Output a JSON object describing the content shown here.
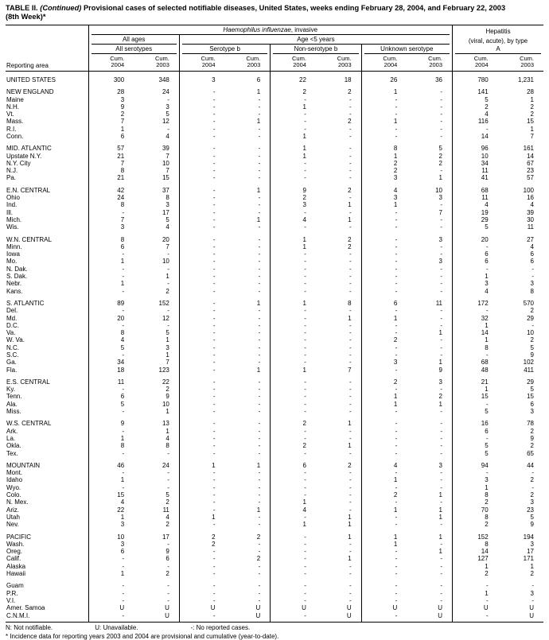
{
  "title": {
    "label": "TABLE II.",
    "continued": " (Continued) ",
    "rest": "Provisional cases of selected notifiable diseases, United States, weeks ending February 28, 2004, and February 22, 2003",
    "line2": "(8th Week)*"
  },
  "header": {
    "reporting_area": "Reporting area",
    "disease1_italic": "Haemophilus influenzae",
    "disease1_rest": ", invasive",
    "all_ages": "All ages",
    "all_serotypes": "All serotypes",
    "age_under5": "Age <5 years",
    "serotype_b": "Serotype b",
    "non_serotype_b": "Non-serotype b",
    "unknown_serotype": "Unknown serotype",
    "hepatitis_line1": "Hepatitis",
    "hepatitis_line2": "(viral, acute), by type",
    "hepatitis_a": "A",
    "cum_label": "Cum.",
    "year_2004": "2004",
    "year_2003": "2003"
  },
  "table": {
    "rows": [
      {
        "n": "UNITED STATES",
        "g": true,
        "v": [
          "300",
          "348",
          "3",
          "6",
          "22",
          "18",
          "26",
          "36",
          "780",
          "1,231"
        ]
      },
      {
        "n": "NEW ENGLAND",
        "g": true,
        "v": [
          "28",
          "24",
          "-",
          "1",
          "2",
          "2",
          "1",
          "-",
          "141",
          "28"
        ]
      },
      {
        "n": "Maine",
        "v": [
          "3",
          "-",
          "-",
          "-",
          "-",
          "-",
          "-",
          "-",
          "5",
          "1"
        ]
      },
      {
        "n": "N.H.",
        "v": [
          "9",
          "3",
          "-",
          "-",
          "1",
          "-",
          "-",
          "-",
          "2",
          "2"
        ]
      },
      {
        "n": "Vt.",
        "v": [
          "2",
          "5",
          "-",
          "-",
          "-",
          "-",
          "-",
          "-",
          "4",
          "2"
        ]
      },
      {
        "n": "Mass.",
        "v": [
          "7",
          "12",
          "-",
          "1",
          "-",
          "2",
          "1",
          "-",
          "116",
          "15"
        ]
      },
      {
        "n": "R.I.",
        "v": [
          "1",
          "-",
          "-",
          "-",
          "-",
          "-",
          "-",
          "-",
          "-",
          "1"
        ]
      },
      {
        "n": "Conn.",
        "v": [
          "6",
          "4",
          "-",
          "-",
          "1",
          "-",
          "-",
          "-",
          "14",
          "7"
        ]
      },
      {
        "n": "MID. ATLANTIC",
        "g": true,
        "v": [
          "57",
          "39",
          "-",
          "-",
          "1",
          "-",
          "8",
          "5",
          "96",
          "161"
        ]
      },
      {
        "n": "Upstate N.Y.",
        "v": [
          "21",
          "7",
          "-",
          "-",
          "1",
          "-",
          "1",
          "2",
          "10",
          "14"
        ]
      },
      {
        "n": "N.Y. City",
        "v": [
          "7",
          "10",
          "-",
          "-",
          "-",
          "-",
          "2",
          "2",
          "34",
          "67"
        ]
      },
      {
        "n": "N.J.",
        "v": [
          "8",
          "7",
          "-",
          "-",
          "-",
          "-",
          "2",
          "-",
          "11",
          "23"
        ]
      },
      {
        "n": "Pa.",
        "v": [
          "21",
          "15",
          "-",
          "-",
          "-",
          "-",
          "3",
          "1",
          "41",
          "57"
        ]
      },
      {
        "n": "E.N. CENTRAL",
        "g": true,
        "v": [
          "42",
          "37",
          "-",
          "1",
          "9",
          "2",
          "4",
          "10",
          "68",
          "100"
        ]
      },
      {
        "n": "Ohio",
        "v": [
          "24",
          "8",
          "-",
          "-",
          "2",
          "-",
          "3",
          "3",
          "11",
          "16"
        ]
      },
      {
        "n": "Ind.",
        "v": [
          "8",
          "3",
          "-",
          "-",
          "3",
          "1",
          "1",
          "-",
          "4",
          "4"
        ]
      },
      {
        "n": "Ill.",
        "v": [
          "-",
          "17",
          "-",
          "-",
          "-",
          "-",
          "-",
          "7",
          "19",
          "39"
        ]
      },
      {
        "n": "Mich.",
        "v": [
          "7",
          "5",
          "-",
          "1",
          "4",
          "1",
          "-",
          "-",
          "29",
          "30"
        ]
      },
      {
        "n": "Wis.",
        "v": [
          "3",
          "4",
          "-",
          "-",
          "-",
          "-",
          "-",
          "-",
          "5",
          "11"
        ]
      },
      {
        "n": "W.N. CENTRAL",
        "g": true,
        "v": [
          "8",
          "20",
          "-",
          "-",
          "1",
          "2",
          "-",
          "3",
          "20",
          "27"
        ]
      },
      {
        "n": "Minn.",
        "v": [
          "6",
          "7",
          "-",
          "-",
          "1",
          "2",
          "-",
          "-",
          "-",
          "4"
        ]
      },
      {
        "n": "Iowa",
        "v": [
          "-",
          "-",
          "-",
          "-",
          "-",
          "-",
          "-",
          "-",
          "6",
          "6"
        ]
      },
      {
        "n": "Mo.",
        "v": [
          "1",
          "10",
          "-",
          "-",
          "-",
          "-",
          "-",
          "3",
          "6",
          "6"
        ]
      },
      {
        "n": "N. Dak.",
        "v": [
          "-",
          "-",
          "-",
          "-",
          "-",
          "-",
          "-",
          "-",
          "-",
          "-"
        ]
      },
      {
        "n": "S. Dak.",
        "v": [
          "-",
          "1",
          "-",
          "-",
          "-",
          "-",
          "-",
          "-",
          "1",
          "-"
        ]
      },
      {
        "n": "Nebr.",
        "v": [
          "1",
          "-",
          "-",
          "-",
          "-",
          "-",
          "-",
          "-",
          "3",
          "3"
        ]
      },
      {
        "n": "Kans.",
        "v": [
          "-",
          "2",
          "-",
          "-",
          "-",
          "-",
          "-",
          "-",
          "4",
          "8"
        ]
      },
      {
        "n": "S. ATLANTIC",
        "g": true,
        "v": [
          "89",
          "152",
          "-",
          "1",
          "1",
          "8",
          "6",
          "11",
          "172",
          "570"
        ]
      },
      {
        "n": "Del.",
        "v": [
          "-",
          "-",
          "-",
          "-",
          "-",
          "-",
          "-",
          "-",
          "-",
          "2"
        ]
      },
      {
        "n": "Md.",
        "v": [
          "20",
          "12",
          "-",
          "-",
          "-",
          "1",
          "1",
          "-",
          "32",
          "29"
        ]
      },
      {
        "n": "D.C.",
        "v": [
          "-",
          "-",
          "-",
          "-",
          "-",
          "-",
          "-",
          "-",
          "1",
          "-"
        ]
      },
      {
        "n": "Va.",
        "v": [
          "8",
          "5",
          "-",
          "-",
          "-",
          "-",
          "-",
          "1",
          "14",
          "10"
        ]
      },
      {
        "n": "W. Va.",
        "v": [
          "4",
          "1",
          "-",
          "-",
          "-",
          "-",
          "2",
          "-",
          "1",
          "2"
        ]
      },
      {
        "n": "N.C.",
        "v": [
          "5",
          "3",
          "-",
          "-",
          "-",
          "-",
          "-",
          "-",
          "8",
          "5"
        ]
      },
      {
        "n": "S.C.",
        "v": [
          "-",
          "1",
          "-",
          "-",
          "-",
          "-",
          "-",
          "-",
          "-",
          "9"
        ]
      },
      {
        "n": "Ga.",
        "v": [
          "34",
          "7",
          "-",
          "-",
          "-",
          "-",
          "3",
          "1",
          "68",
          "102"
        ]
      },
      {
        "n": "Fla.",
        "v": [
          "18",
          "123",
          "-",
          "1",
          "1",
          "7",
          "-",
          "9",
          "48",
          "411"
        ]
      },
      {
        "n": "E.S. CENTRAL",
        "g": true,
        "v": [
          "11",
          "22",
          "-",
          "-",
          "-",
          "-",
          "2",
          "3",
          "21",
          "29"
        ]
      },
      {
        "n": "Ky.",
        "v": [
          "-",
          "2",
          "-",
          "-",
          "-",
          "-",
          "-",
          "-",
          "1",
          "5"
        ]
      },
      {
        "n": "Tenn.",
        "v": [
          "6",
          "9",
          "-",
          "-",
          "-",
          "-",
          "1",
          "2",
          "15",
          "15"
        ]
      },
      {
        "n": "Ala.",
        "v": [
          "5",
          "10",
          "-",
          "-",
          "-",
          "-",
          "1",
          "1",
          "-",
          "6"
        ]
      },
      {
        "n": "Miss.",
        "v": [
          "-",
          "1",
          "-",
          "-",
          "-",
          "-",
          "-",
          "-",
          "5",
          "3"
        ]
      },
      {
        "n": "W.S. CENTRAL",
        "g": true,
        "v": [
          "9",
          "13",
          "-",
          "-",
          "2",
          "1",
          "-",
          "-",
          "16",
          "78"
        ]
      },
      {
        "n": "Ark.",
        "v": [
          "-",
          "1",
          "-",
          "-",
          "-",
          "-",
          "-",
          "-",
          "6",
          "2"
        ]
      },
      {
        "n": "La.",
        "v": [
          "1",
          "4",
          "-",
          "-",
          "-",
          "-",
          "-",
          "-",
          "-",
          "9"
        ]
      },
      {
        "n": "Okla.",
        "v": [
          "8",
          "8",
          "-",
          "-",
          "2",
          "1",
          "-",
          "-",
          "5",
          "2"
        ]
      },
      {
        "n": "Tex.",
        "v": [
          "-",
          "-",
          "-",
          "-",
          "-",
          "-",
          "-",
          "-",
          "5",
          "65"
        ]
      },
      {
        "n": "MOUNTAIN",
        "g": true,
        "v": [
          "46",
          "24",
          "1",
          "1",
          "6",
          "2",
          "4",
          "3",
          "94",
          "44"
        ]
      },
      {
        "n": "Mont.",
        "v": [
          "-",
          "-",
          "-",
          "-",
          "-",
          "-",
          "-",
          "-",
          "-",
          "-"
        ]
      },
      {
        "n": "Idaho",
        "v": [
          "1",
          "-",
          "-",
          "-",
          "-",
          "-",
          "1",
          "-",
          "3",
          "2"
        ]
      },
      {
        "n": "Wyo.",
        "v": [
          "-",
          "-",
          "-",
          "-",
          "-",
          "-",
          "-",
          "-",
          "1",
          "-"
        ]
      },
      {
        "n": "Colo.",
        "v": [
          "15",
          "5",
          "-",
          "-",
          "-",
          "-",
          "2",
          "1",
          "8",
          "2"
        ]
      },
      {
        "n": "N. Mex.",
        "v": [
          "4",
          "2",
          "-",
          "-",
          "1",
          "-",
          "-",
          "-",
          "2",
          "3"
        ]
      },
      {
        "n": "Ariz.",
        "v": [
          "22",
          "11",
          "-",
          "1",
          "4",
          "-",
          "1",
          "1",
          "70",
          "23"
        ]
      },
      {
        "n": "Utah",
        "v": [
          "1",
          "4",
          "1",
          "-",
          "-",
          "1",
          "-",
          "1",
          "8",
          "5"
        ]
      },
      {
        "n": "Nev.",
        "v": [
          "3",
          "2",
          "-",
          "-",
          "1",
          "1",
          "-",
          "-",
          "2",
          "9"
        ]
      },
      {
        "n": "PACIFIC",
        "g": true,
        "v": [
          "10",
          "17",
          "2",
          "2",
          "-",
          "1",
          "1",
          "1",
          "152",
          "194"
        ]
      },
      {
        "n": "Wash.",
        "v": [
          "3",
          "-",
          "2",
          "-",
          "-",
          "-",
          "1",
          "-",
          "8",
          "3"
        ]
      },
      {
        "n": "Oreg.",
        "v": [
          "6",
          "9",
          "-",
          "-",
          "-",
          "-",
          "-",
          "1",
          "14",
          "17"
        ]
      },
      {
        "n": "Calif.",
        "v": [
          "-",
          "6",
          "-",
          "2",
          "-",
          "1",
          "-",
          "-",
          "127",
          "171"
        ]
      },
      {
        "n": "Alaska",
        "v": [
          "-",
          "-",
          "-",
          "-",
          "-",
          "-",
          "-",
          "-",
          "1",
          "1"
        ]
      },
      {
        "n": "Hawaii",
        "v": [
          "1",
          "2",
          "-",
          "-",
          "-",
          "-",
          "-",
          "-",
          "2",
          "2"
        ]
      },
      {
        "n": "Guam",
        "g": true,
        "v": [
          "-",
          "-",
          "-",
          "-",
          "-",
          "-",
          "-",
          "-",
          "-",
          "-"
        ]
      },
      {
        "n": "P.R.",
        "v": [
          "-",
          "-",
          "-",
          "-",
          "-",
          "-",
          "-",
          "-",
          "1",
          "3"
        ]
      },
      {
        "n": "V.I.",
        "v": [
          "-",
          "-",
          "-",
          "-",
          "-",
          "-",
          "-",
          "-",
          "-",
          "-"
        ]
      },
      {
        "n": "Amer. Samoa",
        "v": [
          "U",
          "U",
          "U",
          "U",
          "U",
          "U",
          "U",
          "U",
          "U",
          "U"
        ]
      },
      {
        "n": "C.N.M.I.",
        "v": [
          "-",
          "U",
          "-",
          "U",
          "-",
          "U",
          "-",
          "U",
          "-",
          "U"
        ]
      }
    ]
  },
  "footer": {
    "legend_n": "N: Not notifiable.",
    "legend_u": "U: Unavailable.",
    "legend_dash": "-: No reported cases.",
    "note": "* Incidence data for reporting years 2003 and 2004 are provisional and cumulative (year-to-date)."
  }
}
